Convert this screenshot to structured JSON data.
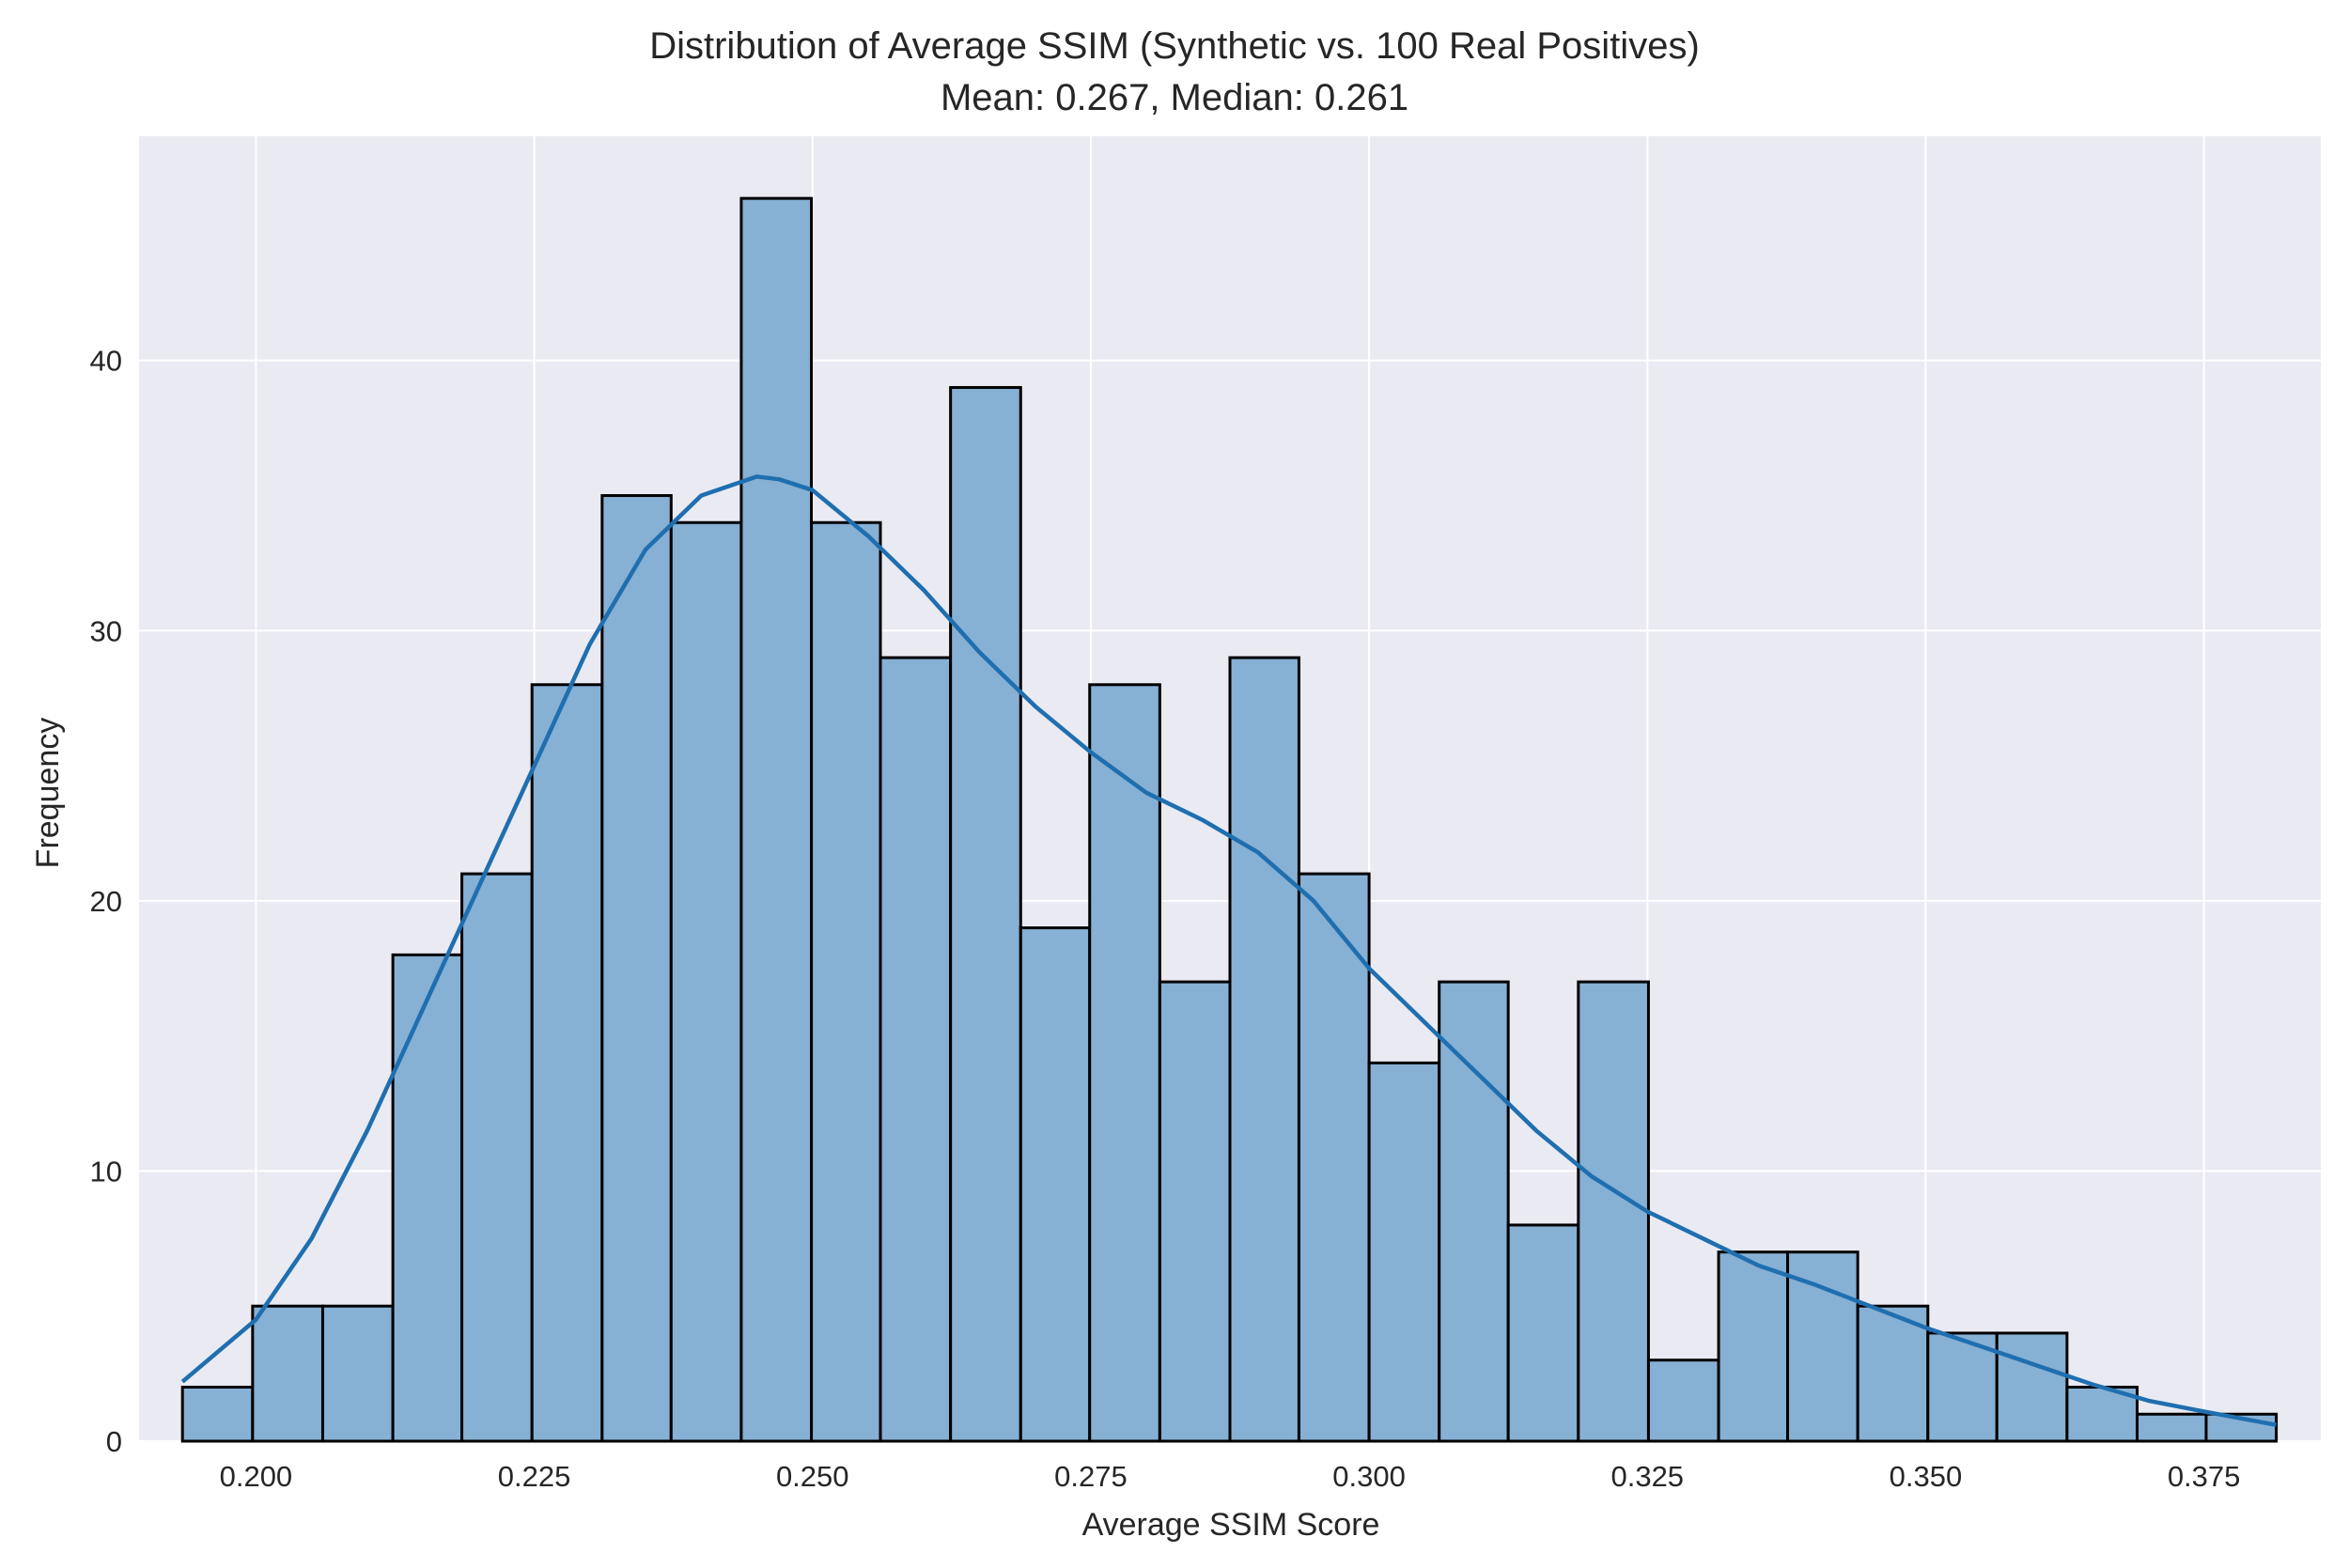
{
  "chart_data": {
    "type": "bar",
    "title": "Distribution of Average SSIM (Synthetic vs. 100 Real Positives)",
    "subtitle": "Mean: 0.267, Median: 0.261",
    "xlabel": "Average SSIM Score",
    "ylabel": "Frequency",
    "xlim": [
      0.1895,
      0.3855
    ],
    "ylim": [
      0,
      48.3
    ],
    "x_ticks": [
      "0.200",
      "0.225",
      "0.250",
      "0.275",
      "0.300",
      "0.325",
      "0.350",
      "0.375"
    ],
    "x_tick_values": [
      0.2,
      0.225,
      0.25,
      0.275,
      0.3,
      0.325,
      0.35,
      0.375
    ],
    "y_ticks": [
      "0",
      "10",
      "20",
      "30",
      "40"
    ],
    "y_tick_values": [
      0,
      10,
      20,
      30,
      40
    ],
    "grid": true,
    "bin_edges": [
      0.1934,
      0.1997,
      0.206,
      0.2123,
      0.2185,
      0.2248,
      0.2311,
      0.2373,
      0.2436,
      0.2499,
      0.2561,
      0.2624,
      0.2687,
      0.2749,
      0.2812,
      0.2875,
      0.2937,
      0.3,
      0.3063,
      0.3125,
      0.3188,
      0.3251,
      0.3314,
      0.3376,
      0.3439,
      0.3502,
      0.3564,
      0.3627,
      0.369,
      0.3752,
      0.3815
    ],
    "values": [
      2,
      5,
      5,
      18,
      21,
      28,
      35,
      34,
      46,
      34,
      29,
      39,
      19,
      28,
      17,
      29,
      21,
      14,
      17,
      8,
      17,
      3,
      7,
      7,
      5,
      4,
      4,
      2,
      1,
      1
    ],
    "kde": {
      "x": [
        0.1934,
        0.2,
        0.205,
        0.21,
        0.215,
        0.22,
        0.225,
        0.23,
        0.235,
        0.24,
        0.245,
        0.247,
        0.25,
        0.255,
        0.26,
        0.265,
        0.27,
        0.275,
        0.28,
        0.285,
        0.29,
        0.295,
        0.3,
        0.305,
        0.31,
        0.315,
        0.32,
        0.325,
        0.33,
        0.335,
        0.34,
        0.345,
        0.35,
        0.355,
        0.36,
        0.365,
        0.37,
        0.375,
        0.3815
      ],
      "y": [
        2.2,
        4.5,
        7.5,
        11.5,
        16.0,
        20.5,
        25.0,
        29.5,
        33.0,
        35.0,
        35.7,
        35.6,
        35.2,
        33.5,
        31.5,
        29.2,
        27.2,
        25.5,
        24.0,
        23.0,
        21.8,
        20.0,
        17.5,
        15.5,
        13.5,
        11.5,
        9.8,
        8.5,
        7.5,
        6.5,
        5.8,
        5.0,
        4.2,
        3.5,
        2.8,
        2.1,
        1.5,
        1.1,
        0.6
      ]
    },
    "colors": {
      "bar_fill": "#86b0d4",
      "bar_edge": "#000000",
      "kde_line": "#1f6fb0",
      "plot_background": "#eaeaf2",
      "grid": "#ffffff"
    }
  }
}
